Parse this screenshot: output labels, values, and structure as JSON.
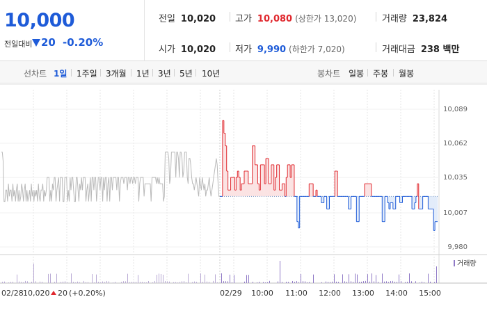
{
  "quote": {
    "current_price": "10,000",
    "change_label": "전일대비",
    "change_amount": "20",
    "change_percent": "-0.20%",
    "prev_close_label": "전일",
    "prev_close": "10,020",
    "high_label": "고가",
    "high": "10,080",
    "upper_limit": "(상한가 13,020)",
    "volume_label": "거래량",
    "volume": "23,824",
    "open_label": "시가",
    "open": "10,020",
    "low_label": "저가",
    "low": "9,990",
    "lower_limit": "(하한가 7,020)",
    "value_label": "거래대금",
    "value": "238 백만",
    "colors": {
      "up": "#e0282e",
      "down": "#1e5bd8"
    }
  },
  "toolbar": {
    "line_chart_label": "선차트",
    "periods": [
      "1일",
      "1주일",
      "3개월",
      "1년",
      "3년",
      "5년",
      "10년"
    ],
    "active_period": "1일",
    "candle_chart_label": "봉차트",
    "candle_periods": [
      "일봉",
      "주봉",
      "월봉"
    ]
  },
  "chart_data": {
    "type": "line",
    "y_ticks": [
      "10,089",
      "10,062",
      "10,035",
      "10,007",
      "9,980"
    ],
    "ylim": [
      9980,
      10089
    ],
    "prev_day_label": "02/28",
    "prev_day_close": "10,020",
    "prev_day_change": "20",
    "prev_day_change_pct": "(+0.20%)",
    "today_label": "02/29",
    "x_ticks": [
      "10:00",
      "11:00",
      "12:00",
      "13:00",
      "14:00",
      "15:00"
    ],
    "baseline": 10020,
    "volume_legend": "거래량",
    "series": [
      {
        "name": "02/28",
        "values": [
          10055,
          10055,
          10048,
          10016,
          10016,
          10025,
          10025,
          10016,
          10030,
          10020,
          10025,
          10025,
          10016,
          10030,
          10020,
          10025,
          10016,
          10025,
          10030,
          10016,
          10025,
          10016,
          10020,
          10030,
          10025,
          10016,
          10025,
          10030,
          10016,
          10025,
          10016,
          10020,
          10025,
          10016,
          10030,
          10020,
          10025,
          10016,
          10025,
          10020,
          10025,
          10016,
          10030,
          10020,
          10016,
          10025,
          10025,
          10030,
          10016,
          10025,
          10020,
          10025,
          10035,
          10035,
          10035,
          10016,
          10025,
          10016,
          10030,
          10025,
          10035,
          10035,
          10016,
          10025,
          10030,
          10035,
          10016,
          10035,
          10035,
          10035,
          10016,
          10016,
          10035,
          10035,
          10035,
          10016,
          10025,
          10016,
          10035,
          10025,
          10035,
          10035,
          10025,
          10016,
          10016,
          10035,
          10035,
          10025,
          10016,
          10030,
          10025,
          10035,
          10025,
          10035,
          10035,
          10035,
          10016,
          10025,
          10030,
          10016,
          10025,
          10035,
          10016,
          10035,
          10035,
          10025,
          10035,
          10035,
          10016,
          10025,
          10035,
          10035,
          10025,
          10035,
          10035,
          10016,
          10035,
          10025,
          10035,
          10035,
          10016,
          10030,
          10035,
          10016,
          10035,
          10035,
          10025,
          10035,
          10035,
          10035,
          10035,
          10025,
          10035,
          10035,
          10016,
          10030,
          10035,
          10035,
          10035,
          10030,
          10035,
          10035,
          10035,
          10025,
          10035,
          10035,
          10030,
          10035,
          10035,
          10030,
          10035,
          10035,
          10030,
          10035,
          10035,
          10035,
          10016,
          10030,
          10035,
          10035,
          10035,
          10035,
          10020,
          10030,
          10030,
          10030,
          10030,
          10030,
          10030,
          10030,
          10016,
          10035,
          10035,
          10035,
          10035,
          10035,
          10030,
          10035,
          10030,
          10035,
          10030,
          10030,
          10030,
          10030,
          10016,
          10020,
          10055,
          10055,
          10055,
          10055,
          10050,
          10030,
          10035,
          10055,
          10055,
          10055,
          10055,
          10055,
          10035,
          10055,
          10055,
          10050,
          10035,
          10055,
          10055,
          10050,
          10035,
          10040,
          10055,
          10055,
          10055,
          10035,
          10030,
          10050,
          10050,
          10045,
          10035,
          10030,
          10030,
          10025,
          10030,
          10035,
          10030,
          10025,
          10020,
          10035,
          10030,
          10025,
          10035,
          10030,
          10025,
          10030,
          10020,
          10025,
          10025,
          10030,
          10035,
          10025,
          10020,
          10025,
          10030,
          10035,
          10040,
          10045,
          10050,
          10045,
          10030,
          10020,
          10020
        ]
      },
      {
        "name": "02/29",
        "values": [
          10020,
          10020,
          10080,
          10070,
          10060,
          10040,
          10025,
          10025,
          10035,
          10035,
          10035,
          10025,
          10035,
          10040,
          10035,
          10025,
          10030,
          10030,
          10040,
          10040,
          10040,
          10030,
          10030,
          10030,
          10060,
          10060,
          10045,
          10045,
          10030,
          10025,
          10045,
          10045,
          10045,
          10030,
          10050,
          10050,
          10030,
          10030,
          10045,
          10045,
          10025,
          10035,
          10045,
          10045,
          10025,
          10025,
          10030,
          10030,
          10020,
          10035,
          10045,
          10045,
          10035,
          10045,
          10045,
          10020,
          10020,
          10000,
          9995,
          10020,
          10020,
          10020,
          10020,
          10020,
          10020,
          10020,
          10030,
          10030,
          10030,
          10020,
          10020,
          10025,
          10020,
          10020,
          10020,
          10015,
          10015,
          10020,
          10020,
          10010,
          10010,
          10020,
          10020,
          10020,
          10020,
          10040,
          10040,
          10020,
          10020,
          10020,
          10020,
          10020,
          10020,
          10020,
          10020,
          10010,
          10010,
          10020,
          10020,
          10020,
          10020,
          10000,
          10000,
          10020,
          10020,
          10020,
          10020,
          10030,
          10030,
          10030,
          10030,
          10030,
          10020,
          10020,
          10020,
          10020,
          10020,
          10020,
          10020,
          10020,
          10000,
          10000,
          10020,
          10020,
          10015,
          10010,
          10015,
          10015,
          10010,
          10010,
          10020,
          10020,
          10020,
          10015,
          10015,
          10020,
          10020,
          10020,
          10020,
          10020,
          10020,
          10020,
          10010,
          10010,
          10015,
          10020,
          10030,
          10010,
          10010,
          10010,
          10020,
          10020,
          10020,
          10020,
          10010,
          10010,
          10010,
          10010,
          9993,
          10000,
          10000,
          10000
        ]
      }
    ]
  }
}
